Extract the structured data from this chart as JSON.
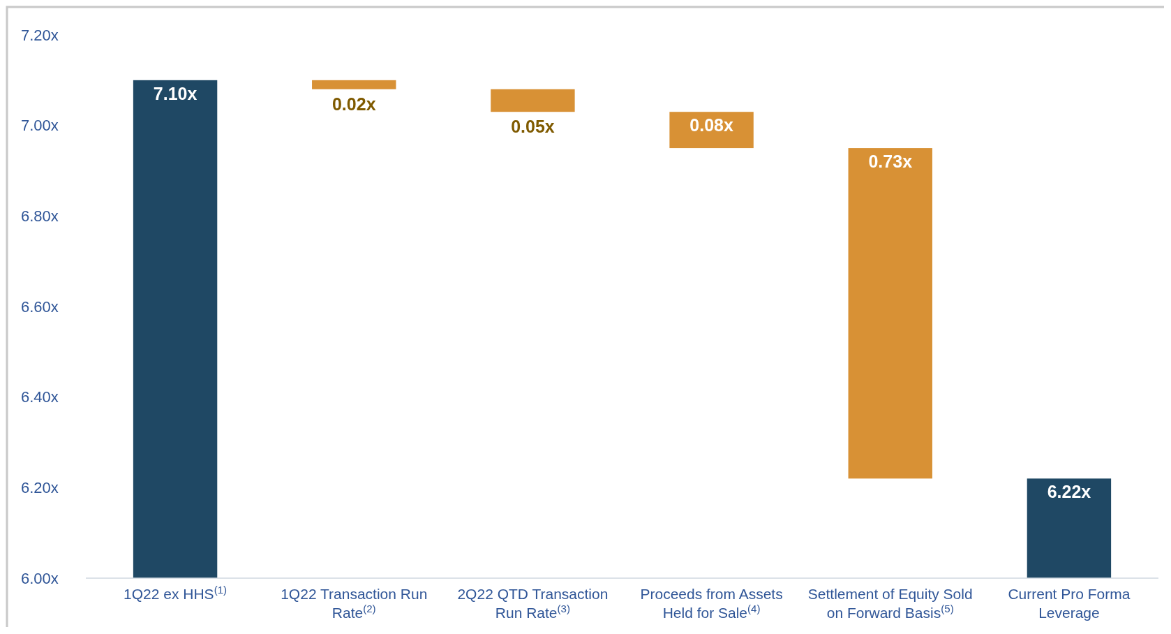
{
  "chart_data": {
    "type": "bar",
    "categories": [
      "1Q22 ex HHS$^{(1)}$",
      "1Q22 Transaction Run Rate$^{(2)}$",
      "2Q22 QTD Transaction Run Rate$^{(3)}$",
      "Proceeds from Assets Held for Sale$^{(4)}$",
      "Settlement of Equity Sold on Forward Basis$^{(5)}$",
      "Current Pro Forma Leverage"
    ],
    "values": [
      1.1,
      -0.02,
      -0.05,
      -0.08,
      -0.73,
      0.22
    ],
    "base": [
      6.0,
      7.1,
      7.08,
      7.03,
      6.95,
      6.0
    ],
    "colors": [
      "#1f4864",
      "#d89135",
      "#d89135",
      "#d89135",
      "#d89135",
      "#1f4864"
    ],
    "value_labels": [
      "7.10x",
      "0.02x",
      "0.05x",
      "0.08x",
      "0.73x",
      "6.22x"
    ],
    "ylim": [
      6.0,
      7.2
    ],
    "yticks": [
      {
        "value": 6.0,
        "label": "6.00x"
      },
      {
        "value": 6.2,
        "label": "6.20x"
      },
      {
        "value": 6.4,
        "label": "6.40x"
      },
      {
        "value": 6.6,
        "label": "6.60x"
      },
      {
        "value": 6.8,
        "label": "6.80x"
      },
      {
        "value": 7.0,
        "label": "7.00x"
      },
      {
        "value": 7.2,
        "label": "7.20x"
      }
    ],
    "grid": false
  }
}
